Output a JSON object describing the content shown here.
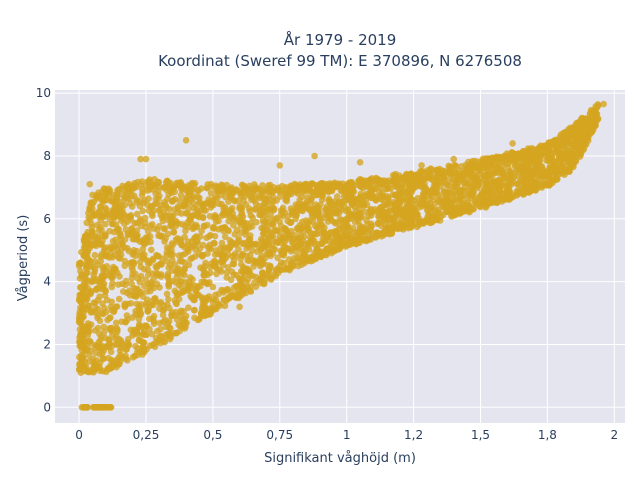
{
  "chart_data": {
    "type": "scatter",
    "title_lines": [
      "År 1979 - 2019",
      "Koordinat (Sweref 99 TM): E 370896, N 6276508"
    ],
    "xlabel": "Signifikant våghöjd (m)",
    "ylabel": "Vågperiod (s)",
    "xlim": [
      -0.09,
      2.04
    ],
    "ylim": [
      -0.5,
      10.1
    ],
    "x_ticks": [
      0,
      0.25,
      0.5,
      0.75,
      1,
      1.25,
      1.5,
      1.75,
      2
    ],
    "x_tick_labels": [
      "0",
      "0,25",
      "0,5",
      "0,75",
      "1",
      "1,2",
      "1,5",
      "1,8",
      "2"
    ],
    "y_ticks": [
      0,
      2,
      4,
      6,
      8,
      10
    ],
    "y_tick_labels": [
      "0",
      "2",
      "4",
      "6",
      "8",
      "10"
    ],
    "grid": true,
    "legend": "none",
    "colors": {
      "marker": "#d4a520",
      "plot_bg": "#e5e5f0",
      "grid": "#ffffff",
      "text": "#2a3f5f"
    },
    "point_cloud_summary": {
      "lower_edge": [
        [
          0.0,
          1.1
        ],
        [
          0.1,
          1.1
        ],
        [
          0.25,
          1.7
        ],
        [
          0.5,
          3.0
        ],
        [
          0.75,
          4.2
        ],
        [
          1.0,
          5.1
        ],
        [
          1.25,
          5.7
        ],
        [
          1.5,
          6.3
        ],
        [
          1.75,
          7.0
        ],
        [
          1.85,
          7.6
        ],
        [
          1.94,
          9.1
        ]
      ],
      "upper_edge": [
        [
          0.0,
          4.6
        ],
        [
          0.05,
          6.9
        ],
        [
          0.25,
          7.3
        ],
        [
          0.5,
          7.1
        ],
        [
          0.75,
          7.1
        ],
        [
          1.0,
          7.2
        ],
        [
          1.25,
          7.5
        ],
        [
          1.5,
          7.9
        ],
        [
          1.75,
          8.4
        ],
        [
          1.85,
          9.0
        ],
        [
          1.94,
          9.7
        ]
      ],
      "zero_period_band": {
        "x_range": [
          0.01,
          0.12
        ],
        "y": 0
      }
    },
    "sample_points": [
      [
        0.4,
        8.5
      ],
      [
        0.25,
        7.9
      ],
      [
        0.23,
        7.9
      ],
      [
        0.88,
        8.0
      ],
      [
        0.75,
        7.7
      ],
      [
        0.04,
        7.1
      ],
      [
        0.02,
        5.3
      ],
      [
        0.03,
        4.5
      ],
      [
        0.0,
        4.5
      ],
      [
        0.0,
        1.2
      ],
      [
        1.05,
        7.8
      ],
      [
        1.28,
        7.7
      ],
      [
        1.4,
        7.9
      ],
      [
        1.94,
        9.6
      ],
      [
        1.96,
        9.65
      ],
      [
        1.62,
        8.4
      ],
      [
        1.46,
        6.4
      ],
      [
        1.27,
        5.8
      ],
      [
        0.27,
        6.4
      ],
      [
        0.33,
        7.2
      ],
      [
        0.18,
        6.8
      ],
      [
        0.15,
        1.6
      ],
      [
        0.38,
        2.6
      ],
      [
        0.6,
        3.2
      ]
    ]
  }
}
